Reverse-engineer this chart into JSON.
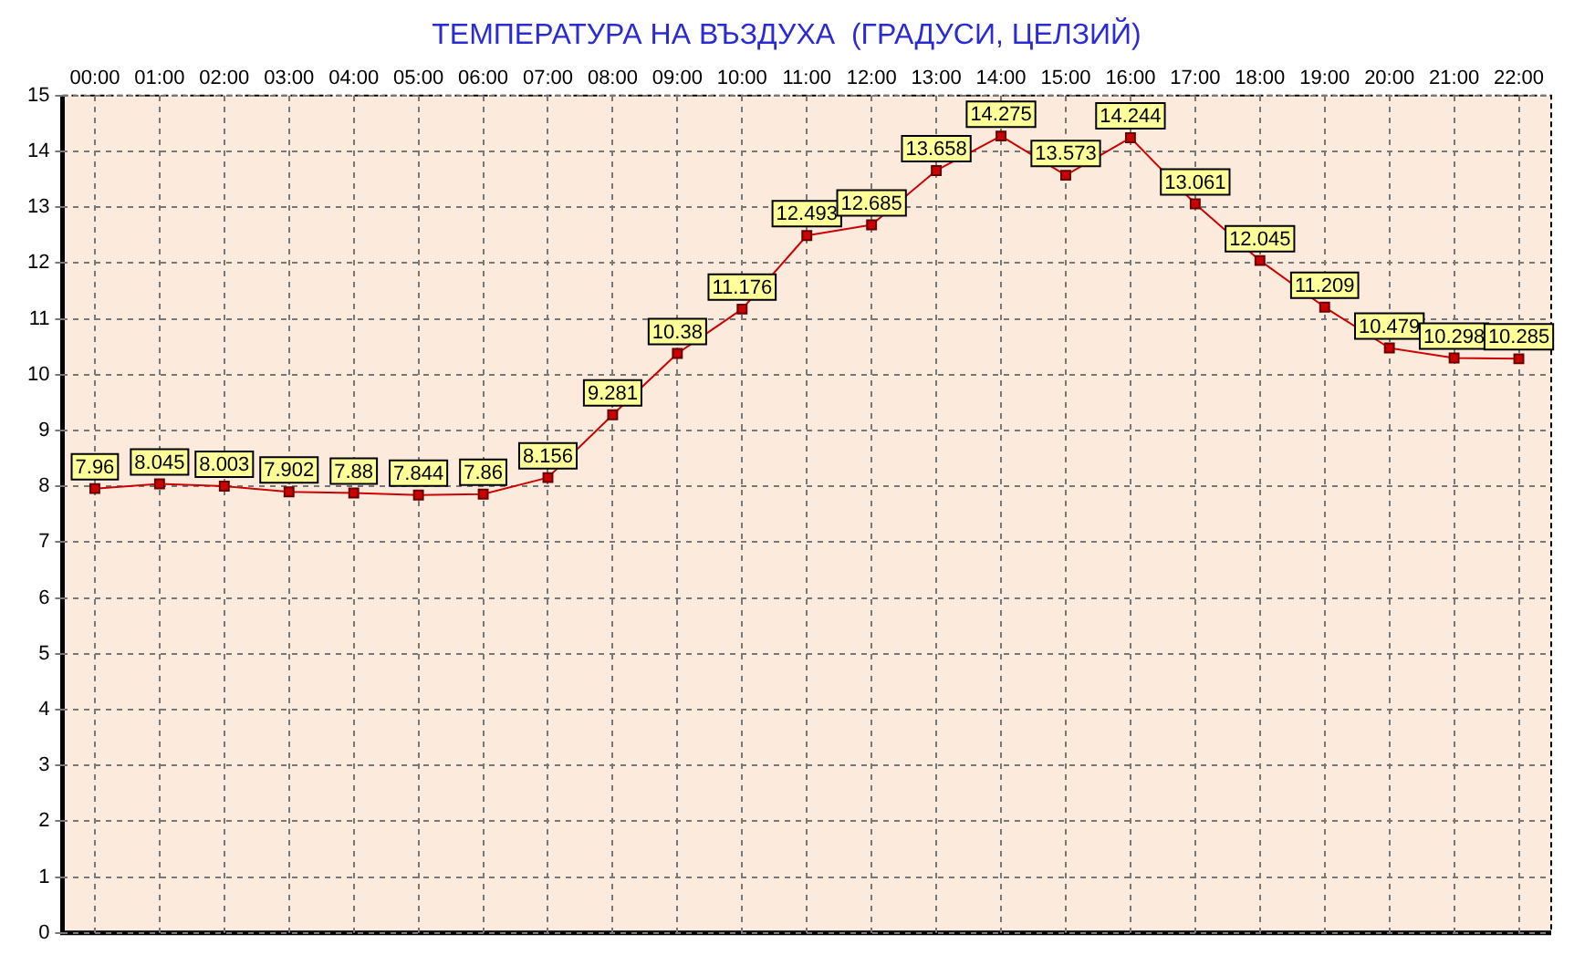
{
  "chart_data": {
    "type": "line",
    "title": "ТЕМПЕРАТУРА НА ВЪЗДУХА  (ГРАДУСИ, ЦЕЛЗИЙ)",
    "categories": [
      "00:00",
      "01:00",
      "02:00",
      "03:00",
      "04:00",
      "05:00",
      "06:00",
      "07:00",
      "08:00",
      "09:00",
      "10:00",
      "11:00",
      "12:00",
      "13:00",
      "14:00",
      "15:00",
      "16:00",
      "17:00",
      "18:00",
      "19:00",
      "20:00",
      "21:00",
      "22:00"
    ],
    "series": [
      {
        "color": "#cc0000",
        "values": [
          7.96,
          8.045,
          8.003,
          7.902,
          7.88,
          7.844,
          7.86,
          8.156,
          9.281,
          10.38,
          11.176,
          12.493,
          12.685,
          13.658,
          14.275,
          13.573,
          14.244,
          13.061,
          12.045,
          11.209,
          10.479,
          10.298,
          10.285
        ]
      }
    ],
    "ylim": [
      0,
      15
    ],
    "yticks": [
      0,
      1,
      2,
      3,
      4,
      5,
      6,
      7,
      8,
      9,
      10,
      11,
      12,
      13,
      14,
      15
    ],
    "grid": true,
    "legend": false,
    "marker": "square",
    "line_style": "solid",
    "data_labels": true
  }
}
